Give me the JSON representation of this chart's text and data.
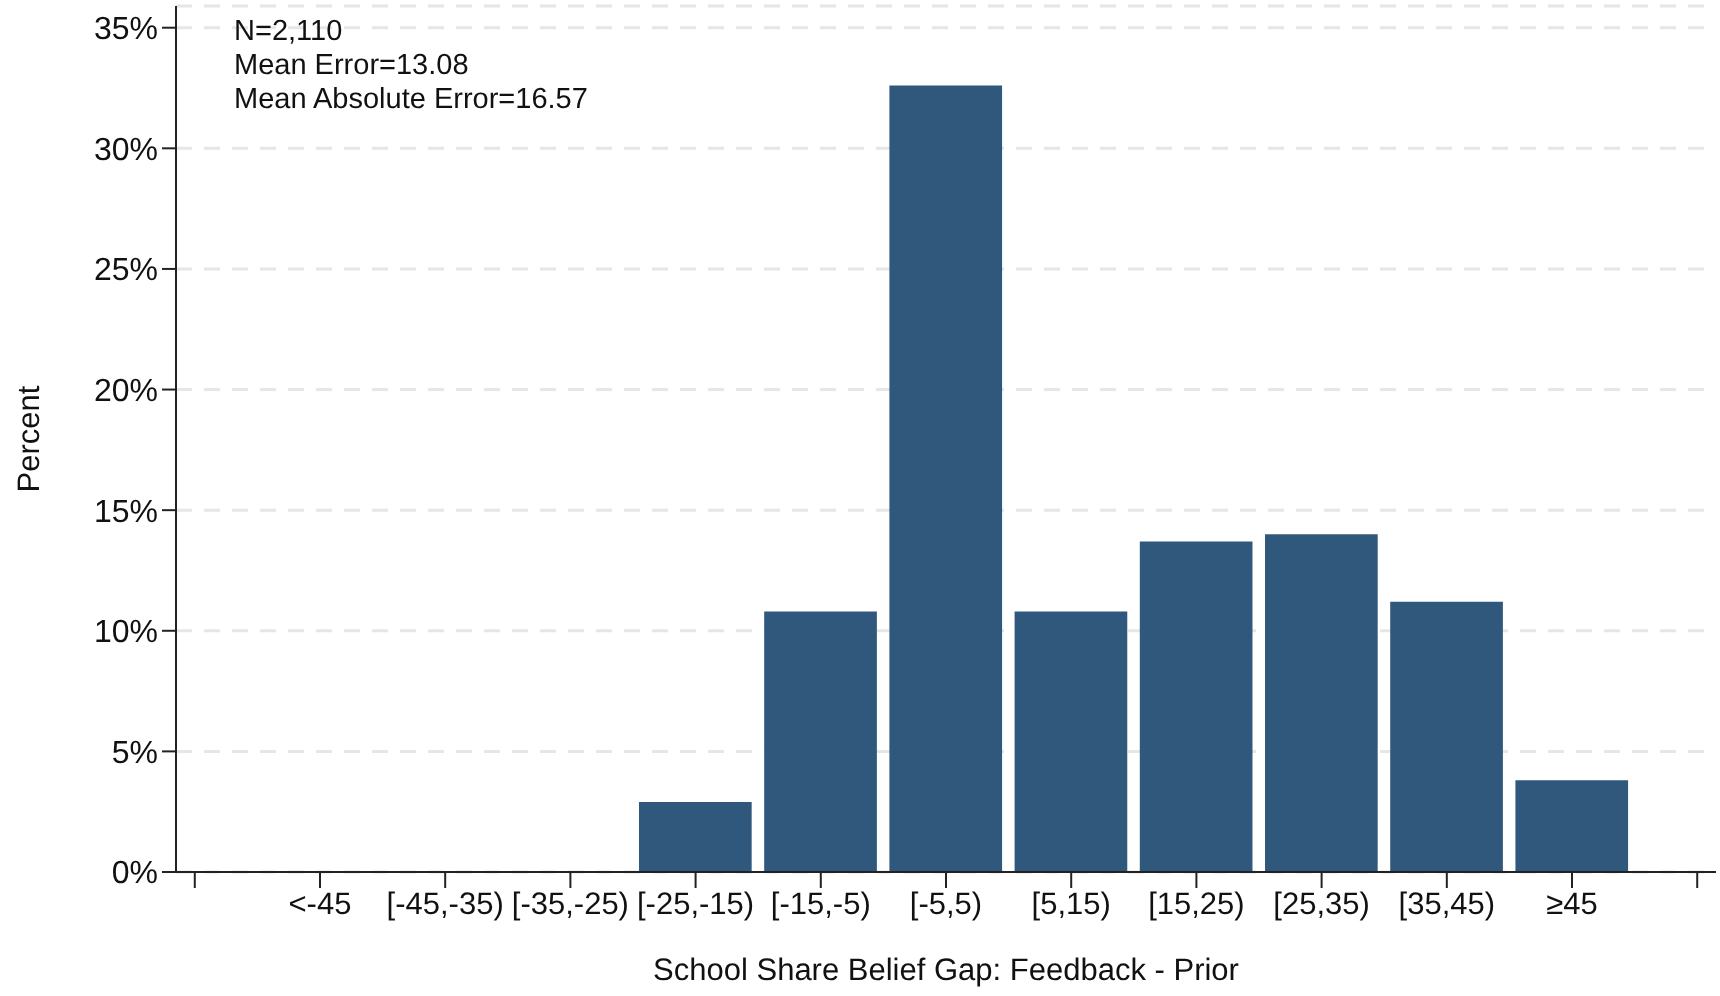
{
  "chart_data": {
    "type": "bar",
    "xlabel": "School Share Belief Gap: Feedback - Prior",
    "ylabel": "Percent",
    "categories": [
      "<-45",
      "[-45,-35)",
      "[-35,-25)",
      "[-25,-15)",
      "[-15,-5)",
      "[-5,5)",
      "[5,15)",
      "[15,25)",
      "[25,35)",
      "[35,45)",
      "≥45"
    ],
    "values": [
      0,
      0,
      0,
      2.9,
      10.8,
      32.6,
      10.8,
      13.7,
      14.0,
      11.2,
      3.8
    ],
    "color": "#30587c",
    "ylim": [
      0,
      35.9
    ],
    "yticks": [
      {
        "value": 0,
        "label": "0%"
      },
      {
        "value": 5,
        "label": "5%"
      },
      {
        "value": 10,
        "label": "10%"
      },
      {
        "value": 15,
        "label": "15%"
      },
      {
        "value": 20,
        "label": "20%"
      },
      {
        "value": 25,
        "label": "25%"
      },
      {
        "value": 30,
        "label": "30%"
      },
      {
        "value": 35,
        "label": "35%"
      }
    ],
    "grid": "y",
    "annotations": [
      "N=2,110",
      "Mean Error=13.08",
      "Mean Absolute Error=16.57"
    ]
  }
}
